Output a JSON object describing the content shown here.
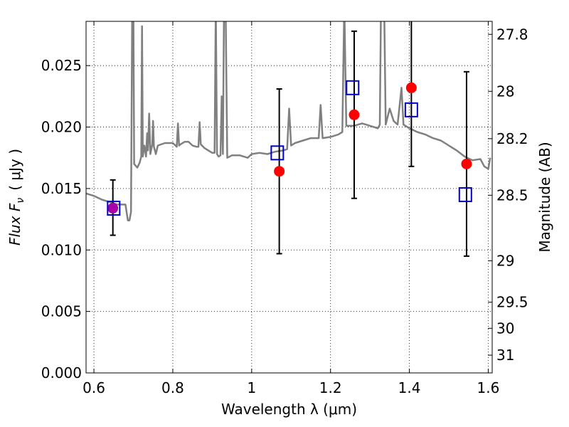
{
  "chart_data": {
    "type": "scatter",
    "xlabel": "Wavelength  λ (μm)",
    "ylabel": "Flux  F",
    "ylabel_sub": "ν",
    "ylabel_unit": "( μJy )",
    "y2label": "Magnitude (AB)",
    "xlim": [
      0.58,
      1.61
    ],
    "ylim": [
      0.0,
      0.0286
    ],
    "grid": true,
    "x_ticks": [
      {
        "v": 0.6,
        "label": "0.6"
      },
      {
        "v": 0.8,
        "label": "0.8"
      },
      {
        "v": 1.0,
        "label": "1"
      },
      {
        "v": 1.2,
        "label": "1.2"
      },
      {
        "v": 1.4,
        "label": "1.4"
      },
      {
        "v": 1.6,
        "label": "1.6"
      }
    ],
    "y_ticks": [
      {
        "v": 0.0,
        "label": "0.000"
      },
      {
        "v": 0.005,
        "label": "0.005"
      },
      {
        "v": 0.01,
        "label": "0.010"
      },
      {
        "v": 0.015,
        "label": "0.015"
      },
      {
        "v": 0.02,
        "label": "0.020"
      },
      {
        "v": 0.025,
        "label": "0.025"
      }
    ],
    "y2_ticks": [
      {
        "mag": 27.8,
        "label": "27.8"
      },
      {
        "mag": 28.0,
        "label": "28"
      },
      {
        "mag": 28.2,
        "label": "28.2"
      },
      {
        "mag": 28.5,
        "label": "28.5"
      },
      {
        "mag": 29.0,
        "label": "29"
      },
      {
        "mag": 29.5,
        "label": "29.5"
      },
      {
        "mag": 30.0,
        "label": "30"
      },
      {
        "mag": 31.0,
        "label": "31"
      }
    ],
    "colors": {
      "model": "#808080",
      "observed": "#ff0000",
      "model_points": "#0000cc",
      "overlap": "#aa00aa",
      "errorbar": "#000000"
    },
    "series": [
      {
        "kind": "model_spectrum",
        "points": [
          [
            0.58,
            0.0146
          ],
          [
            0.6,
            0.0144
          ],
          [
            0.62,
            0.0141
          ],
          [
            0.64,
            0.0139
          ],
          [
            0.66,
            0.0137
          ],
          [
            0.68,
            0.0137
          ],
          [
            0.686,
            0.0124
          ],
          [
            0.69,
            0.0124
          ],
          [
            0.694,
            0.0131
          ],
          [
            0.697,
            0.03
          ],
          [
            0.7,
            0.03
          ],
          [
            0.702,
            0.017
          ],
          [
            0.71,
            0.0167
          ],
          [
            0.716,
            0.0171
          ],
          [
            0.72,
            0.0176
          ],
          [
            0.722,
            0.0282
          ],
          [
            0.724,
            0.0176
          ],
          [
            0.728,
            0.0185
          ],
          [
            0.732,
            0.0176
          ],
          [
            0.735,
            0.0195
          ],
          [
            0.737,
            0.0181
          ],
          [
            0.74,
            0.0211
          ],
          [
            0.743,
            0.0178
          ],
          [
            0.748,
            0.0186
          ],
          [
            0.75,
            0.0205
          ],
          [
            0.752,
            0.0184
          ],
          [
            0.757,
            0.0178
          ],
          [
            0.762,
            0.0185
          ],
          [
            0.78,
            0.0187
          ],
          [
            0.8,
            0.0187
          ],
          [
            0.81,
            0.0184
          ],
          [
            0.813,
            0.0203
          ],
          [
            0.816,
            0.0185
          ],
          [
            0.82,
            0.0186
          ],
          [
            0.83,
            0.0188
          ],
          [
            0.84,
            0.0188
          ],
          [
            0.85,
            0.0185
          ],
          [
            0.86,
            0.0184
          ],
          [
            0.865,
            0.0184
          ],
          [
            0.868,
            0.0204
          ],
          [
            0.871,
            0.0186
          ],
          [
            0.88,
            0.0183
          ],
          [
            0.9,
            0.0179
          ],
          [
            0.906,
            0.0179
          ],
          [
            0.909,
            0.03
          ],
          [
            0.912,
            0.0178
          ],
          [
            0.916,
            0.0176
          ],
          [
            0.921,
            0.0177
          ],
          [
            0.924,
            0.0225
          ],
          [
            0.927,
            0.0178
          ],
          [
            0.93,
            0.03
          ],
          [
            0.934,
            0.03
          ],
          [
            0.938,
            0.0175
          ],
          [
            0.95,
            0.0177
          ],
          [
            0.97,
            0.0177
          ],
          [
            0.99,
            0.0175
          ],
          [
            1.0,
            0.0178
          ],
          [
            1.02,
            0.0179
          ],
          [
            1.04,
            0.0178
          ],
          [
            1.06,
            0.018
          ],
          [
            1.08,
            0.0181
          ],
          [
            1.09,
            0.0182
          ],
          [
            1.095,
            0.0215
          ],
          [
            1.1,
            0.0185
          ],
          [
            1.11,
            0.0187
          ],
          [
            1.13,
            0.0189
          ],
          [
            1.15,
            0.0191
          ],
          [
            1.17,
            0.0191
          ],
          [
            1.175,
            0.0218
          ],
          [
            1.18,
            0.0191
          ],
          [
            1.2,
            0.0192
          ],
          [
            1.22,
            0.0194
          ],
          [
            1.23,
            0.0196
          ],
          [
            1.235,
            0.03
          ],
          [
            1.24,
            0.0201
          ],
          [
            1.26,
            0.0201
          ],
          [
            1.27,
            0.0202
          ],
          [
            1.28,
            0.0203
          ],
          [
            1.29,
            0.0202
          ],
          [
            1.3,
            0.0201
          ],
          [
            1.31,
            0.02
          ],
          [
            1.32,
            0.0199
          ],
          [
            1.325,
            0.0202
          ],
          [
            1.328,
            0.03
          ],
          [
            1.336,
            0.03
          ],
          [
            1.34,
            0.0202
          ],
          [
            1.35,
            0.0215
          ],
          [
            1.36,
            0.0205
          ],
          [
            1.37,
            0.0202
          ],
          [
            1.38,
            0.0232
          ],
          [
            1.385,
            0.0202
          ],
          [
            1.4,
            0.0199
          ],
          [
            1.42,
            0.0196
          ],
          [
            1.44,
            0.0194
          ],
          [
            1.46,
            0.0191
          ],
          [
            1.48,
            0.0189
          ],
          [
            1.5,
            0.0185
          ],
          [
            1.52,
            0.0181
          ],
          [
            1.54,
            0.0176
          ],
          [
            1.56,
            0.0173
          ],
          [
            1.58,
            0.0174
          ],
          [
            1.59,
            0.0168
          ],
          [
            1.6,
            0.0166
          ],
          [
            1.605,
            0.0175
          ]
        ]
      },
      {
        "kind": "observed",
        "marker": "filled-circle",
        "points": [
          {
            "x": 0.648,
            "y": 0.0134,
            "yerr_lo": 0.0112,
            "yerr_hi": 0.0157,
            "overlap": true
          },
          {
            "x": 1.07,
            "y": 0.0164,
            "yerr_lo": 0.0097,
            "yerr_hi": 0.0231
          },
          {
            "x": 1.26,
            "y": 0.021,
            "yerr_lo": 0.0142,
            "yerr_hi": 0.0278
          },
          {
            "x": 1.405,
            "y": 0.0232,
            "yerr_lo": 0.0168,
            "yerr_hi": 0.0295
          },
          {
            "x": 1.545,
            "y": 0.017,
            "yerr_lo": 0.0095,
            "yerr_hi": 0.0245
          }
        ]
      },
      {
        "kind": "model_photometry",
        "marker": "open-square",
        "points": [
          {
            "x": 0.65,
            "y": 0.0134
          },
          {
            "x": 1.065,
            "y": 0.0179
          },
          {
            "x": 1.256,
            "y": 0.0232
          },
          {
            "x": 1.405,
            "y": 0.0214
          },
          {
            "x": 1.542,
            "y": 0.0145
          }
        ]
      }
    ]
  }
}
